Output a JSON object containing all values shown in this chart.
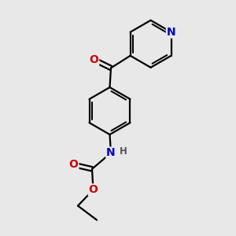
{
  "background_color": "#e8e8e8",
  "bond_color": "#000000",
  "bond_width": 1.6,
  "atom_colors": {
    "N": "#0000cc",
    "O": "#cc0000",
    "C": "#000000",
    "H": "#555555"
  },
  "font_size_atom": 10,
  "font_size_H": 8.5
}
